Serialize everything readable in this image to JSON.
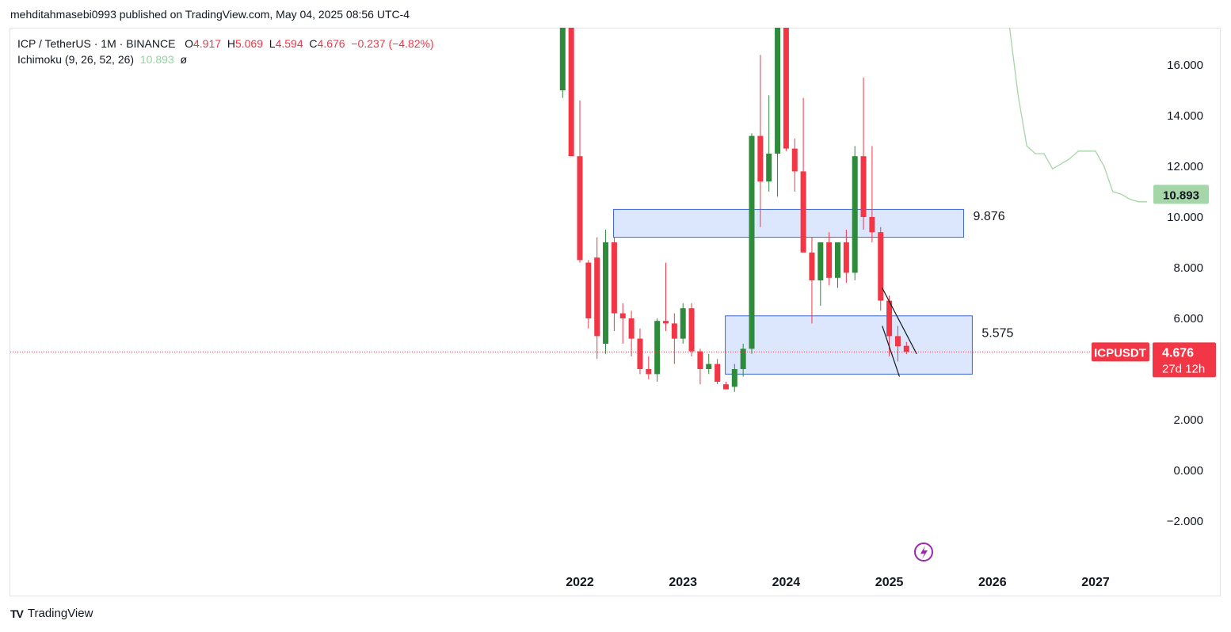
{
  "header": {
    "publisher_line": "mehditahmasebi0993 published on TradingView.com, May 04, 2025 08:56 UTC-4"
  },
  "legend": {
    "symbol_line": "ICP / TetherUS · 1M · BINANCE",
    "o_label": "O",
    "o_value": "4.917",
    "h_label": "H",
    "h_value": "5.069",
    "l_label": "L",
    "l_value": "4.594",
    "c_label": "C",
    "c_value": "4.676",
    "change": "−0.237 (−4.82%)",
    "indicator_name": "Ichimoku (9, 26, 52, 26)",
    "indicator_value": "10.893",
    "indicator_extra": "ø"
  },
  "badges": {
    "symbol": "ICPUSDT",
    "price": "4.676",
    "countdown": "27d 12h",
    "ichimoku": "10.893"
  },
  "footer": {
    "brand": "TradingView",
    "logo_text": "TV"
  },
  "colors": {
    "up": "#22ab94",
    "up_candle": "#2e8b3c",
    "down": "#f23645",
    "zone_fill": "#d6e2fc",
    "zone_stroke": "#3b66d6",
    "ichimoku_line": "#a5d6a7",
    "ichimoku_badge": "#a5d6a7"
  },
  "chart_data": {
    "type": "candlestick",
    "y_axis_ticks": [
      "16.000",
      "14.000",
      "12.000",
      "10.000",
      "8.000",
      "6.000",
      "2.000",
      "0.000",
      "−2.000"
    ],
    "ylim": [
      -3.2,
      17.6
    ],
    "x_axis_ticks": [
      "2022",
      "2023",
      "2024",
      "2025",
      "2026",
      "2027"
    ],
    "xlim": [
      "2021-06",
      "2027-10"
    ],
    "grid": false,
    "candles": [
      {
        "t": "2021-11",
        "o": 15,
        "h": 17.6,
        "l": 14.7,
        "c": 17.6
      },
      {
        "t": "2021-12",
        "o": 17.6,
        "h": 17.6,
        "l": 12.4,
        "c": 12.4
      },
      {
        "t": "2022-01",
        "o": 12.4,
        "h": 14.6,
        "l": 8.2,
        "c": 8.3
      },
      {
        "t": "2022-02",
        "o": 8.2,
        "h": 8.3,
        "l": 5.6,
        "c": 6.0
      },
      {
        "t": "2022-03",
        "o": 8.4,
        "h": 9.2,
        "l": 4.4,
        "c": 5.3
      },
      {
        "t": "2022-04",
        "o": 5.0,
        "h": 9.5,
        "l": 4.6,
        "c": 9.0
      },
      {
        "t": "2022-05",
        "o": 9.0,
        "h": 9.2,
        "l": 5.5,
        "c": 6.2
      },
      {
        "t": "2022-06",
        "o": 6.2,
        "h": 6.6,
        "l": 5.0,
        "c": 6.0
      },
      {
        "t": "2022-07",
        "o": 6.0,
        "h": 6.3,
        "l": 4.5,
        "c": 5.2
      },
      {
        "t": "2022-08",
        "o": 5.2,
        "h": 5.6,
        "l": 3.8,
        "c": 4.0
      },
      {
        "t": "2022-09",
        "o": 4.0,
        "h": 4.5,
        "l": 3.6,
        "c": 3.8
      },
      {
        "t": "2022-10",
        "o": 3.8,
        "h": 6.0,
        "l": 3.5,
        "c": 5.9
      },
      {
        "t": "2022-11",
        "o": 5.9,
        "h": 8.2,
        "l": 5.5,
        "c": 5.8
      },
      {
        "t": "2022-12",
        "o": 5.8,
        "h": 6.2,
        "l": 4.2,
        "c": 5.2
      },
      {
        "t": "2023-01",
        "o": 5.2,
        "h": 6.6,
        "l": 5.0,
        "c": 6.4
      },
      {
        "t": "2023-02",
        "o": 6.4,
        "h": 6.6,
        "l": 4.5,
        "c": 4.7
      },
      {
        "t": "2023-03",
        "o": 4.7,
        "h": 4.8,
        "l": 3.4,
        "c": 4.0
      },
      {
        "t": "2023-04",
        "o": 4.0,
        "h": 4.6,
        "l": 3.8,
        "c": 4.2
      },
      {
        "t": "2023-05",
        "o": 4.2,
        "h": 4.4,
        "l": 3.4,
        "c": 3.5
      },
      {
        "t": "2023-06",
        "o": 3.4,
        "h": 3.5,
        "l": 3.2,
        "c": 3.2
      },
      {
        "t": "2023-07",
        "o": 3.3,
        "h": 4.2,
        "l": 3.1,
        "c": 4.0
      },
      {
        "t": "2023-08",
        "o": 4.0,
        "h": 5.0,
        "l": 3.7,
        "c": 4.8
      },
      {
        "t": "2023-09",
        "o": 4.8,
        "h": 13.3,
        "l": 4.6,
        "c": 13.2
      },
      {
        "t": "2023-10",
        "o": 13.2,
        "h": 16.4,
        "l": 9.6,
        "c": 11.4
      },
      {
        "t": "2023-11",
        "o": 11.4,
        "h": 14.8,
        "l": 11.0,
        "c": 12.5
      },
      {
        "t": "2023-12",
        "o": 12.5,
        "h": 17.6,
        "l": 10.8,
        "c": 17.6
      },
      {
        "t": "2024-01",
        "o": 17.6,
        "h": 17.6,
        "l": 12.6,
        "c": 12.7
      },
      {
        "t": "2024-02",
        "o": 12.7,
        "h": 13.1,
        "l": 11.0,
        "c": 11.8
      },
      {
        "t": "2024-03",
        "o": 11.8,
        "h": 14.7,
        "l": 8.6,
        "c": 8.6
      },
      {
        "t": "2024-04",
        "o": 8.6,
        "h": 9.2,
        "l": 5.8,
        "c": 7.5
      },
      {
        "t": "2024-05",
        "o": 7.5,
        "h": 9.0,
        "l": 6.5,
        "c": 9.0
      },
      {
        "t": "2024-06",
        "o": 9.0,
        "h": 9.4,
        "l": 7.3,
        "c": 7.6
      },
      {
        "t": "2024-07",
        "o": 7.6,
        "h": 8.8,
        "l": 7.2,
        "c": 9.0
      },
      {
        "t": "2024-08",
        "o": 9.0,
        "h": 9.5,
        "l": 7.4,
        "c": 7.8
      },
      {
        "t": "2024-09",
        "o": 7.8,
        "h": 12.8,
        "l": 7.5,
        "c": 12.4
      },
      {
        "t": "2024-10",
        "o": 12.4,
        "h": 15.5,
        "l": 9.5,
        "c": 10.0
      },
      {
        "t": "2024-11",
        "o": 10.0,
        "h": 12.8,
        "l": 9.0,
        "c": 9.4
      },
      {
        "t": "2024-12",
        "o": 9.4,
        "h": 9.6,
        "l": 6.3,
        "c": 6.7
      },
      {
        "t": "2025-01",
        "o": 6.7,
        "h": 6.9,
        "l": 4.5,
        "c": 5.3
      },
      {
        "t": "2025-02",
        "o": 5.3,
        "h": 5.7,
        "l": 4.3,
        "c": 4.9
      },
      {
        "t": "2025-03",
        "o": 4.917,
        "h": 5.069,
        "l": 4.594,
        "c": 4.676
      }
    ],
    "ichimoku_cloud_line": [
      {
        "t": "2026-03",
        "v": 17.6
      },
      {
        "t": "2026-04",
        "v": 14.8
      },
      {
        "t": "2026-05",
        "v": 12.8
      },
      {
        "t": "2026-06",
        "v": 12.5
      },
      {
        "t": "2026-07",
        "v": 12.5
      },
      {
        "t": "2026-08",
        "v": 11.9
      },
      {
        "t": "2026-09",
        "v": 12.1
      },
      {
        "t": "2026-10",
        "v": 12.3
      },
      {
        "t": "2026-11",
        "v": 12.6
      },
      {
        "t": "2026-12",
        "v": 12.6
      },
      {
        "t": "2027-01",
        "v": 12.6
      },
      {
        "t": "2027-02",
        "v": 12.0
      },
      {
        "t": "2027-03",
        "v": 11.0
      },
      {
        "t": "2027-04",
        "v": 10.9
      },
      {
        "t": "2027-05",
        "v": 10.7
      },
      {
        "t": "2027-06",
        "v": 10.6
      },
      {
        "t": "2027-07",
        "v": 10.6
      }
    ],
    "zones": [
      {
        "label": "9.876",
        "t_start": "2022-04",
        "t_end": "2025-08",
        "top": 10.3,
        "bottom": 9.2
      },
      {
        "label": "5.575",
        "t_start": "2023-05",
        "t_end": "2025-09",
        "top": 6.1,
        "bottom": 3.8
      }
    ],
    "trend_lines": [
      {
        "from": {
          "t": "2024-12",
          "v": 7.2
        },
        "to": {
          "t": "2025-04",
          "v": 4.6
        }
      },
      {
        "from": {
          "t": "2024-12",
          "v": 5.7
        },
        "to": {
          "t": "2025-02",
          "v": 3.7
        }
      }
    ],
    "current_price": 4.676
  }
}
